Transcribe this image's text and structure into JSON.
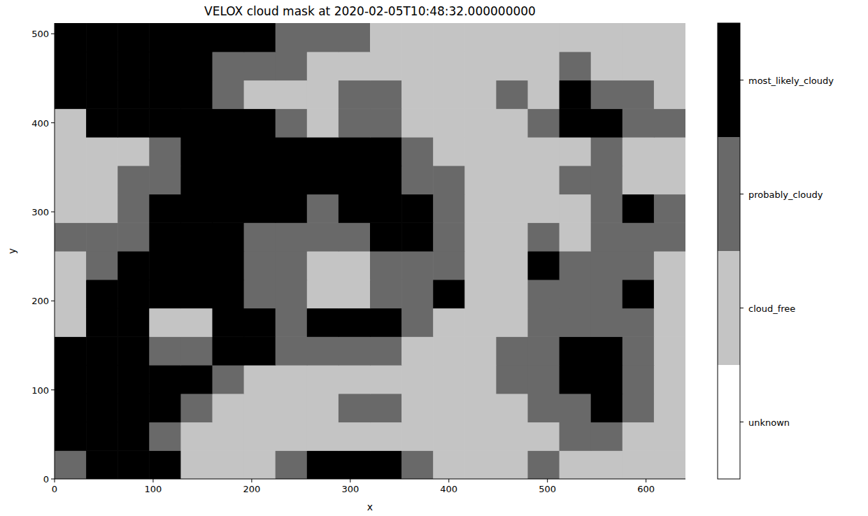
{
  "chart_data": {
    "type": "heatmap",
    "title": "VELOX cloud mask at 2020-02-05T10:48:32.000000000",
    "x_label": "x",
    "y_label": "y",
    "xlim": [
      0,
      640
    ],
    "ylim": [
      0,
      512
    ],
    "xticks": [
      0,
      100,
      200,
      300,
      400,
      500,
      600
    ],
    "yticks": [
      0,
      100,
      200,
      300,
      400,
      500
    ],
    "xbins": [
      0,
      32,
      64,
      96,
      128,
      160,
      192,
      224,
      256,
      288,
      320,
      352,
      384,
      416,
      448,
      480,
      512,
      544,
      576,
      608,
      640
    ],
    "ybins": [
      0,
      32,
      64,
      96,
      128,
      160,
      192,
      224,
      256,
      288,
      320,
      352,
      384,
      416,
      448,
      480,
      512
    ],
    "cells": [
      [
        2,
        3,
        3,
        3,
        1,
        1,
        1,
        2,
        3,
        3,
        3,
        2,
        1,
        1,
        1,
        2,
        1,
        1,
        1,
        1
      ],
      [
        3,
        3,
        3,
        2,
        1,
        1,
        1,
        1,
        1,
        1,
        1,
        1,
        1,
        1,
        1,
        1,
        2,
        2,
        1,
        1
      ],
      [
        3,
        3,
        3,
        3,
        2,
        1,
        1,
        1,
        1,
        2,
        2,
        1,
        1,
        1,
        1,
        2,
        2,
        3,
        2,
        1
      ],
      [
        3,
        3,
        3,
        3,
        3,
        2,
        1,
        1,
        1,
        1,
        1,
        1,
        1,
        1,
        2,
        2,
        3,
        3,
        2,
        1
      ],
      [
        3,
        3,
        3,
        2,
        2,
        3,
        3,
        2,
        2,
        2,
        2,
        1,
        1,
        1,
        2,
        2,
        3,
        3,
        2,
        1
      ],
      [
        1,
        3,
        3,
        1,
        1,
        3,
        3,
        2,
        3,
        3,
        3,
        2,
        1,
        1,
        1,
        2,
        2,
        2,
        2,
        1
      ],
      [
        1,
        3,
        3,
        3,
        3,
        3,
        2,
        2,
        1,
        1,
        2,
        2,
        3,
        1,
        1,
        2,
        2,
        2,
        3,
        1
      ],
      [
        1,
        2,
        3,
        3,
        3,
        3,
        2,
        2,
        1,
        1,
        2,
        2,
        2,
        1,
        1,
        3,
        2,
        2,
        2,
        1
      ],
      [
        2,
        2,
        2,
        3,
        3,
        3,
        2,
        2,
        2,
        2,
        3,
        3,
        2,
        1,
        1,
        2,
        1,
        2,
        2,
        2
      ],
      [
        1,
        1,
        2,
        3,
        3,
        3,
        3,
        3,
        2,
        3,
        3,
        3,
        2,
        1,
        1,
        1,
        1,
        2,
        3,
        2
      ],
      [
        1,
        1,
        2,
        2,
        3,
        3,
        3,
        3,
        3,
        3,
        3,
        2,
        2,
        1,
        1,
        1,
        2,
        2,
        1,
        1
      ],
      [
        1,
        1,
        1,
        2,
        3,
        3,
        3,
        3,
        3,
        3,
        3,
        2,
        1,
        1,
        1,
        1,
        1,
        2,
        1,
        1
      ],
      [
        1,
        3,
        3,
        3,
        3,
        3,
        3,
        2,
        1,
        2,
        2,
        1,
        1,
        1,
        1,
        2,
        3,
        3,
        2,
        2
      ],
      [
        3,
        3,
        3,
        3,
        3,
        2,
        1,
        1,
        1,
        2,
        2,
        1,
        1,
        1,
        2,
        1,
        3,
        2,
        2,
        1
      ],
      [
        3,
        3,
        3,
        3,
        3,
        2,
        2,
        2,
        1,
        1,
        1,
        1,
        1,
        1,
        1,
        1,
        2,
        1,
        1,
        1
      ],
      [
        3,
        3,
        3,
        3,
        3,
        3,
        3,
        2,
        2,
        2,
        1,
        1,
        1,
        1,
        1,
        1,
        1,
        1,
        1,
        1
      ]
    ],
    "colorbar": {
      "range": [
        -0.5,
        3.5
      ],
      "ticks": [
        {
          "value": 0,
          "label": "unknown"
        },
        {
          "value": 1,
          "label": "cloud_free"
        },
        {
          "value": 2,
          "label": "probably_cloudy"
        },
        {
          "value": 3,
          "label": "most_likely_cloudy"
        }
      ],
      "colors": [
        "#ffffff",
        "#c4c4c4",
        "#696969",
        "#000000"
      ]
    }
  }
}
